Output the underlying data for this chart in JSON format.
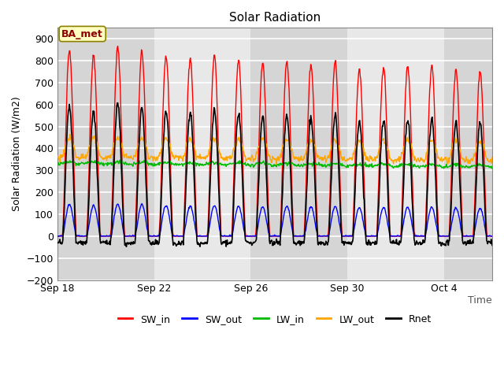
{
  "title": "Solar Radiation",
  "ylabel": "Solar Radiation (W/m2)",
  "xlabel_right": "Time",
  "ylim": [
    -200,
    950
  ],
  "yticks": [
    -200,
    -100,
    0,
    100,
    200,
    300,
    400,
    500,
    600,
    700,
    800,
    900
  ],
  "x_tick_labels": [
    "Sep 18",
    "Sep 22",
    "Sep 26",
    "Sep 30",
    "Oct 4"
  ],
  "x_tick_positions": [
    0,
    4,
    8,
    12,
    16
  ],
  "annotation_text": "BA_met",
  "annotation_color": "#8B0000",
  "annotation_bg": "#FFFFC0",
  "annotation_edge": "#8B8000",
  "colors": {
    "SW_in": "#FF0000",
    "SW_out": "#0000FF",
    "LW_in": "#00BB00",
    "LW_out": "#FFA500",
    "Rnet": "#000000"
  },
  "line_widths": {
    "SW_in": 1.0,
    "SW_out": 1.0,
    "LW_in": 1.0,
    "LW_out": 1.0,
    "Rnet": 1.2
  },
  "plot_bg_color": "#EBEBEB",
  "band_colors": [
    "#D5D5D5",
    "#E8E8E8"
  ],
  "grid_color": "#FFFFFF",
  "figsize": [
    6.4,
    4.8
  ],
  "dpi": 100,
  "n_days": 18,
  "points_per_day": 48
}
